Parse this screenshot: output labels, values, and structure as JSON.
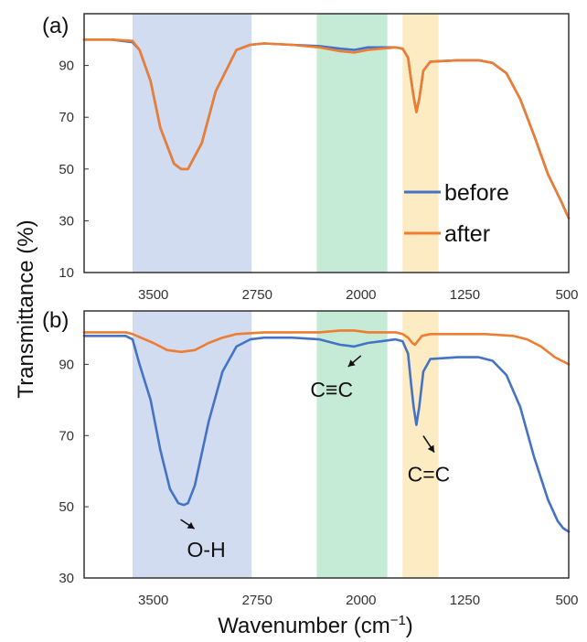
{
  "chart_data": {
    "type": "line",
    "x_reversed": true,
    "xlim": [
      4000,
      500
    ],
    "xlabel": "Wavenumber (cm",
    "xlabel_sup": "−1",
    "xlabel_close": ")",
    "ylabel": "Transmittance (%)",
    "x_ticks": [
      {
        "value": 3500,
        "label": "3500"
      },
      {
        "value": 2750,
        "label": "2750"
      },
      {
        "value": 2000,
        "label": "2000"
      },
      {
        "value": 1250,
        "label": "1250"
      },
      {
        "value": 500,
        "label": "500"
      }
    ],
    "bands": [
      {
        "from": 3650,
        "to": 2790,
        "color": "#d2dcf0"
      },
      {
        "from": 2320,
        "to": 1810,
        "color": "#c5ebd6"
      },
      {
        "from": 1700,
        "to": 1440,
        "color": "#fdebc4"
      }
    ],
    "colors": {
      "before": "#4472c4",
      "after": "#ed7d31"
    },
    "panels": [
      {
        "label": "(a)",
        "ylim": [
          10,
          110
        ],
        "y_ticks": [
          {
            "value": 90,
            "label": "90"
          },
          {
            "value": 70,
            "label": "70"
          },
          {
            "value": 50,
            "label": "50"
          },
          {
            "value": 30,
            "label": "30"
          },
          {
            "value": 10,
            "label": "10"
          }
        ],
        "legend": [
          {
            "key": "before",
            "label": "before"
          },
          {
            "key": "after",
            "label": "after"
          }
        ],
        "series": [
          {
            "name": "before",
            "x": [
              4000,
              3800,
              3650,
              3600,
              3520,
              3450,
              3350,
              3300,
              3250,
              3150,
              3050,
              2900,
              2800,
              2700,
              2500,
              2300,
              2150,
              2050,
              1950,
              1850,
              1750,
              1700,
              1660,
              1640,
              1620,
              1600,
              1580,
              1550,
              1500,
              1300,
              1150,
              1050,
              950,
              850,
              750,
              650,
              550,
              500
            ],
            "y": [
              100,
              100,
              99,
              96,
              84,
              66,
              52,
              50,
              50,
              60,
              80,
              96,
              98,
              98.5,
              98,
              97.5,
              96.5,
              96,
              97,
              97,
              97,
              96.5,
              93,
              85,
              78,
              72,
              77,
              88,
              91.5,
              92,
              92,
              91,
              87,
              77,
              63,
              48,
              37,
              31
            ]
          },
          {
            "name": "after",
            "x": [
              4000,
              3800,
              3650,
              3600,
              3520,
              3450,
              3350,
              3300,
              3250,
              3150,
              3050,
              2900,
              2800,
              2700,
              2500,
              2300,
              2150,
              2050,
              1950,
              1850,
              1750,
              1700,
              1660,
              1640,
              1620,
              1600,
              1580,
              1550,
              1500,
              1300,
              1150,
              1050,
              950,
              850,
              750,
              650,
              550,
              500
            ],
            "y": [
              100,
              100,
              99.5,
              96,
              84,
              66,
              52,
              50,
              50,
              60,
              80,
              96,
              98,
              98.5,
              98,
              97,
              95.5,
              95,
              96,
              96.5,
              97,
              96.5,
              93,
              85,
              78,
              72,
              77,
              88,
              91.5,
              92,
              92,
              91,
              87,
              77,
              63,
              48,
              37,
              31
            ]
          }
        ]
      },
      {
        "label": "(b)",
        "ylim": [
          30,
          105
        ],
        "y_ticks": [
          {
            "value": 90,
            "label": "90"
          },
          {
            "value": 70,
            "label": "70"
          },
          {
            "value": 50,
            "label": "50"
          },
          {
            "value": 30,
            "label": "30"
          }
        ],
        "annotations": [
          {
            "text": "O-H",
            "x": 3210,
            "y": 50
          },
          {
            "text": "C≡C",
            "x": 2080,
            "y": 95
          },
          {
            "text": "C=C",
            "x": 1590,
            "y": 73
          }
        ],
        "series": [
          {
            "name": "before",
            "x": [
              4000,
              3800,
              3700,
              3650,
              3600,
              3520,
              3450,
              3380,
              3320,
              3280,
              3250,
              3200,
              3100,
              3000,
              2900,
              2800,
              2700,
              2500,
              2300,
              2150,
              2050,
              1950,
              1850,
              1750,
              1700,
              1660,
              1640,
              1620,
              1600,
              1580,
              1550,
              1500,
              1300,
              1150,
              1050,
              950,
              850,
              750,
              650,
              580,
              540,
              500
            ],
            "y": [
              98,
              98,
              98,
              97,
              90,
              80,
              66,
              55,
              51,
              50.5,
              51,
              56,
              74,
              88,
              95,
              97,
              97.5,
              97.5,
              97,
              95.5,
              95,
              96,
              96.5,
              97,
              96.5,
              93,
              85,
              78,
              73,
              78,
              88,
              91.5,
              92,
              92,
              91,
              87,
              78,
              64,
              52,
              46,
              44,
              43
            ]
          },
          {
            "name": "after",
            "x": [
              4000,
              3800,
              3700,
              3650,
              3500,
              3400,
              3300,
              3200,
              3100,
              3000,
              2900,
              2700,
              2500,
              2300,
              2150,
              2050,
              1950,
              1850,
              1750,
              1700,
              1660,
              1630,
              1610,
              1590,
              1560,
              1500,
              1300,
              1100,
              900,
              800,
              700,
              600,
              500
            ],
            "y": [
              99,
              99,
              99,
              98.5,
              96,
              94,
              93.5,
              94,
              96,
              97.5,
              98.5,
              99,
              99,
              99,
              99.5,
              99.5,
              99,
              99,
              99,
              98.5,
              97.5,
              96,
              95.5,
              96.5,
              98,
              98.5,
              98.5,
              98.5,
              98,
              97,
              95,
              92,
              90
            ]
          }
        ]
      }
    ]
  }
}
